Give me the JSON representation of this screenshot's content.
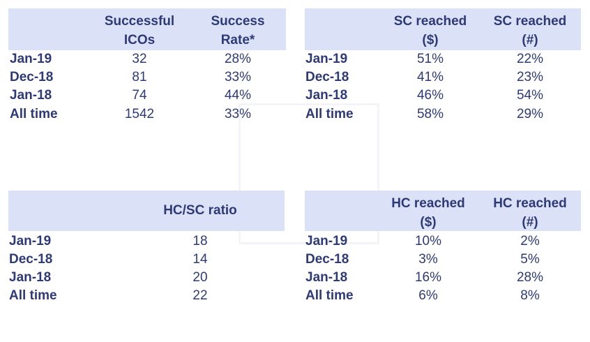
{
  "tables": [
    {
      "header": [
        [
          "Successful",
          "ICOs"
        ],
        [
          "Success",
          "Rate*"
        ]
      ],
      "rows": [
        {
          "label": "Jan-19",
          "cells": [
            32,
            "28%"
          ]
        },
        {
          "label": "Dec-18",
          "cells": [
            81,
            "33%"
          ]
        },
        {
          "label": "Jan-18",
          "cells": [
            74,
            "44%"
          ]
        },
        {
          "label": "All time",
          "cells": [
            1542,
            "33%"
          ]
        }
      ]
    },
    {
      "header": [
        [
          "SC reached",
          "($)"
        ],
        [
          "SC reached",
          "(#)"
        ]
      ],
      "rows": [
        {
          "label": "Jan-19",
          "cells": [
            "51%",
            "22%"
          ]
        },
        {
          "label": "Dec-18",
          "cells": [
            "41%",
            "23%"
          ]
        },
        {
          "label": "Jan-18",
          "cells": [
            "46%",
            "54%"
          ]
        },
        {
          "label": "All time",
          "cells": [
            "58%",
            "29%"
          ]
        }
      ]
    },
    {
      "header": [
        [
          "HC/SC ratio"
        ]
      ],
      "rows": [
        {
          "label": "Jan-19",
          "cells": [
            18
          ]
        },
        {
          "label": "Dec-18",
          "cells": [
            14
          ]
        },
        {
          "label": "Jan-18",
          "cells": [
            20
          ]
        },
        {
          "label": "All time",
          "cells": [
            22
          ]
        }
      ]
    },
    {
      "header": [
        [
          "HC reached",
          "($)"
        ],
        [
          "HC reached",
          "(#)"
        ]
      ],
      "rows": [
        {
          "label": "Jan-19",
          "cells": [
            "10%",
            "2%"
          ]
        },
        {
          "label": "Dec-18",
          "cells": [
            "3%",
            "5%"
          ]
        },
        {
          "label": "Jan-18",
          "cells": [
            "16%",
            "28%"
          ]
        },
        {
          "label": "All time",
          "cells": [
            "6%",
            "8%"
          ]
        }
      ]
    }
  ]
}
